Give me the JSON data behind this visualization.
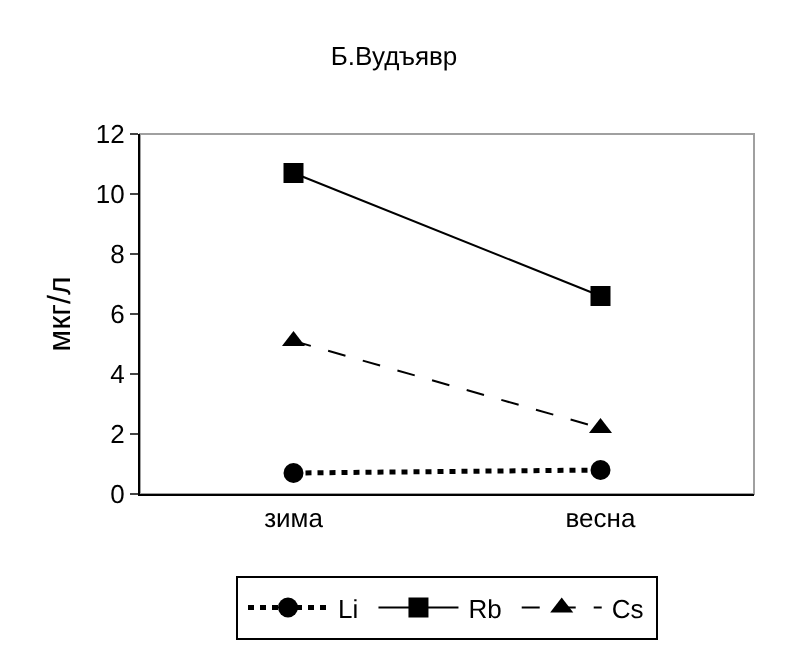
{
  "chart_data": {
    "type": "line",
    "title": "Б.Вудъявр",
    "ylabel": "мкг/л",
    "categories": [
      "зима",
      "весна"
    ],
    "series": [
      {
        "name": "Li",
        "color": "#000000",
        "values": [
          0.7,
          0.8
        ],
        "marker": "circle",
        "line_style": "dotted"
      },
      {
        "name": "Rb",
        "color": "#000000",
        "values": [
          10.7,
          6.6
        ],
        "marker": "square",
        "line_style": "solid"
      },
      {
        "name": "Cs",
        "color": "#000000",
        "values": [
          5.1,
          2.2
        ],
        "marker": "triangle",
        "line_style": "dashed"
      }
    ],
    "ylim": [
      0,
      12
    ],
    "yticks": [
      0,
      2,
      4,
      6,
      8,
      10,
      12
    ],
    "grid": false,
    "legend": "bottom"
  }
}
